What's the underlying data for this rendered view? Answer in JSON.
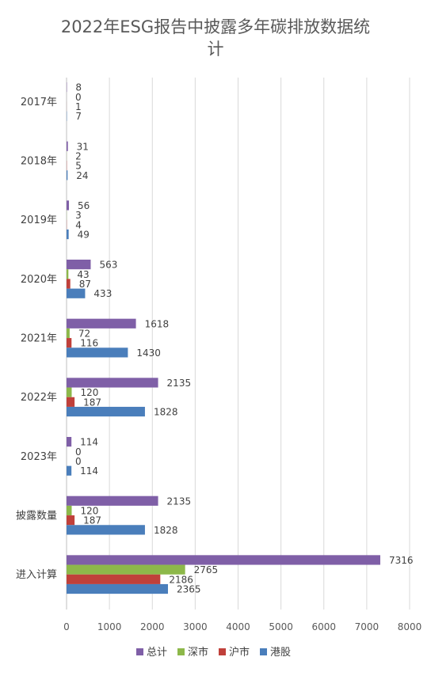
{
  "chart_data": {
    "type": "bar",
    "orientation": "horizontal",
    "title_line1": "2022年ESG报告中披露多年碳排放数据统",
    "title_line2": "计",
    "categories": [
      "2017年",
      "2018年",
      "2019年",
      "2020年",
      "2021年",
      "2022年",
      "2023年",
      "披露数量",
      "进入计算"
    ],
    "series": [
      {
        "name": "总计",
        "color": "#7f5fa7",
        "values": [
          8,
          31,
          56,
          563,
          1618,
          2135,
          114,
          2135,
          7316
        ]
      },
      {
        "name": "深市",
        "color": "#8db84a",
        "values": [
          0,
          2,
          3,
          43,
          72,
          120,
          0,
          120,
          2765
        ]
      },
      {
        "name": "沪市",
        "color": "#c0403a",
        "values": [
          1,
          5,
          4,
          87,
          116,
          187,
          0,
          187,
          2186
        ]
      },
      {
        "name": "港股",
        "color": "#4a7ebb",
        "values": [
          7,
          24,
          49,
          433,
          1430,
          1828,
          114,
          1828,
          2365
        ]
      }
    ],
    "xlim": [
      0,
      8000
    ],
    "xticks": [
      0,
      1000,
      2000,
      3000,
      4000,
      5000,
      6000,
      7000,
      8000
    ],
    "grid": true,
    "legend": "bottom"
  }
}
